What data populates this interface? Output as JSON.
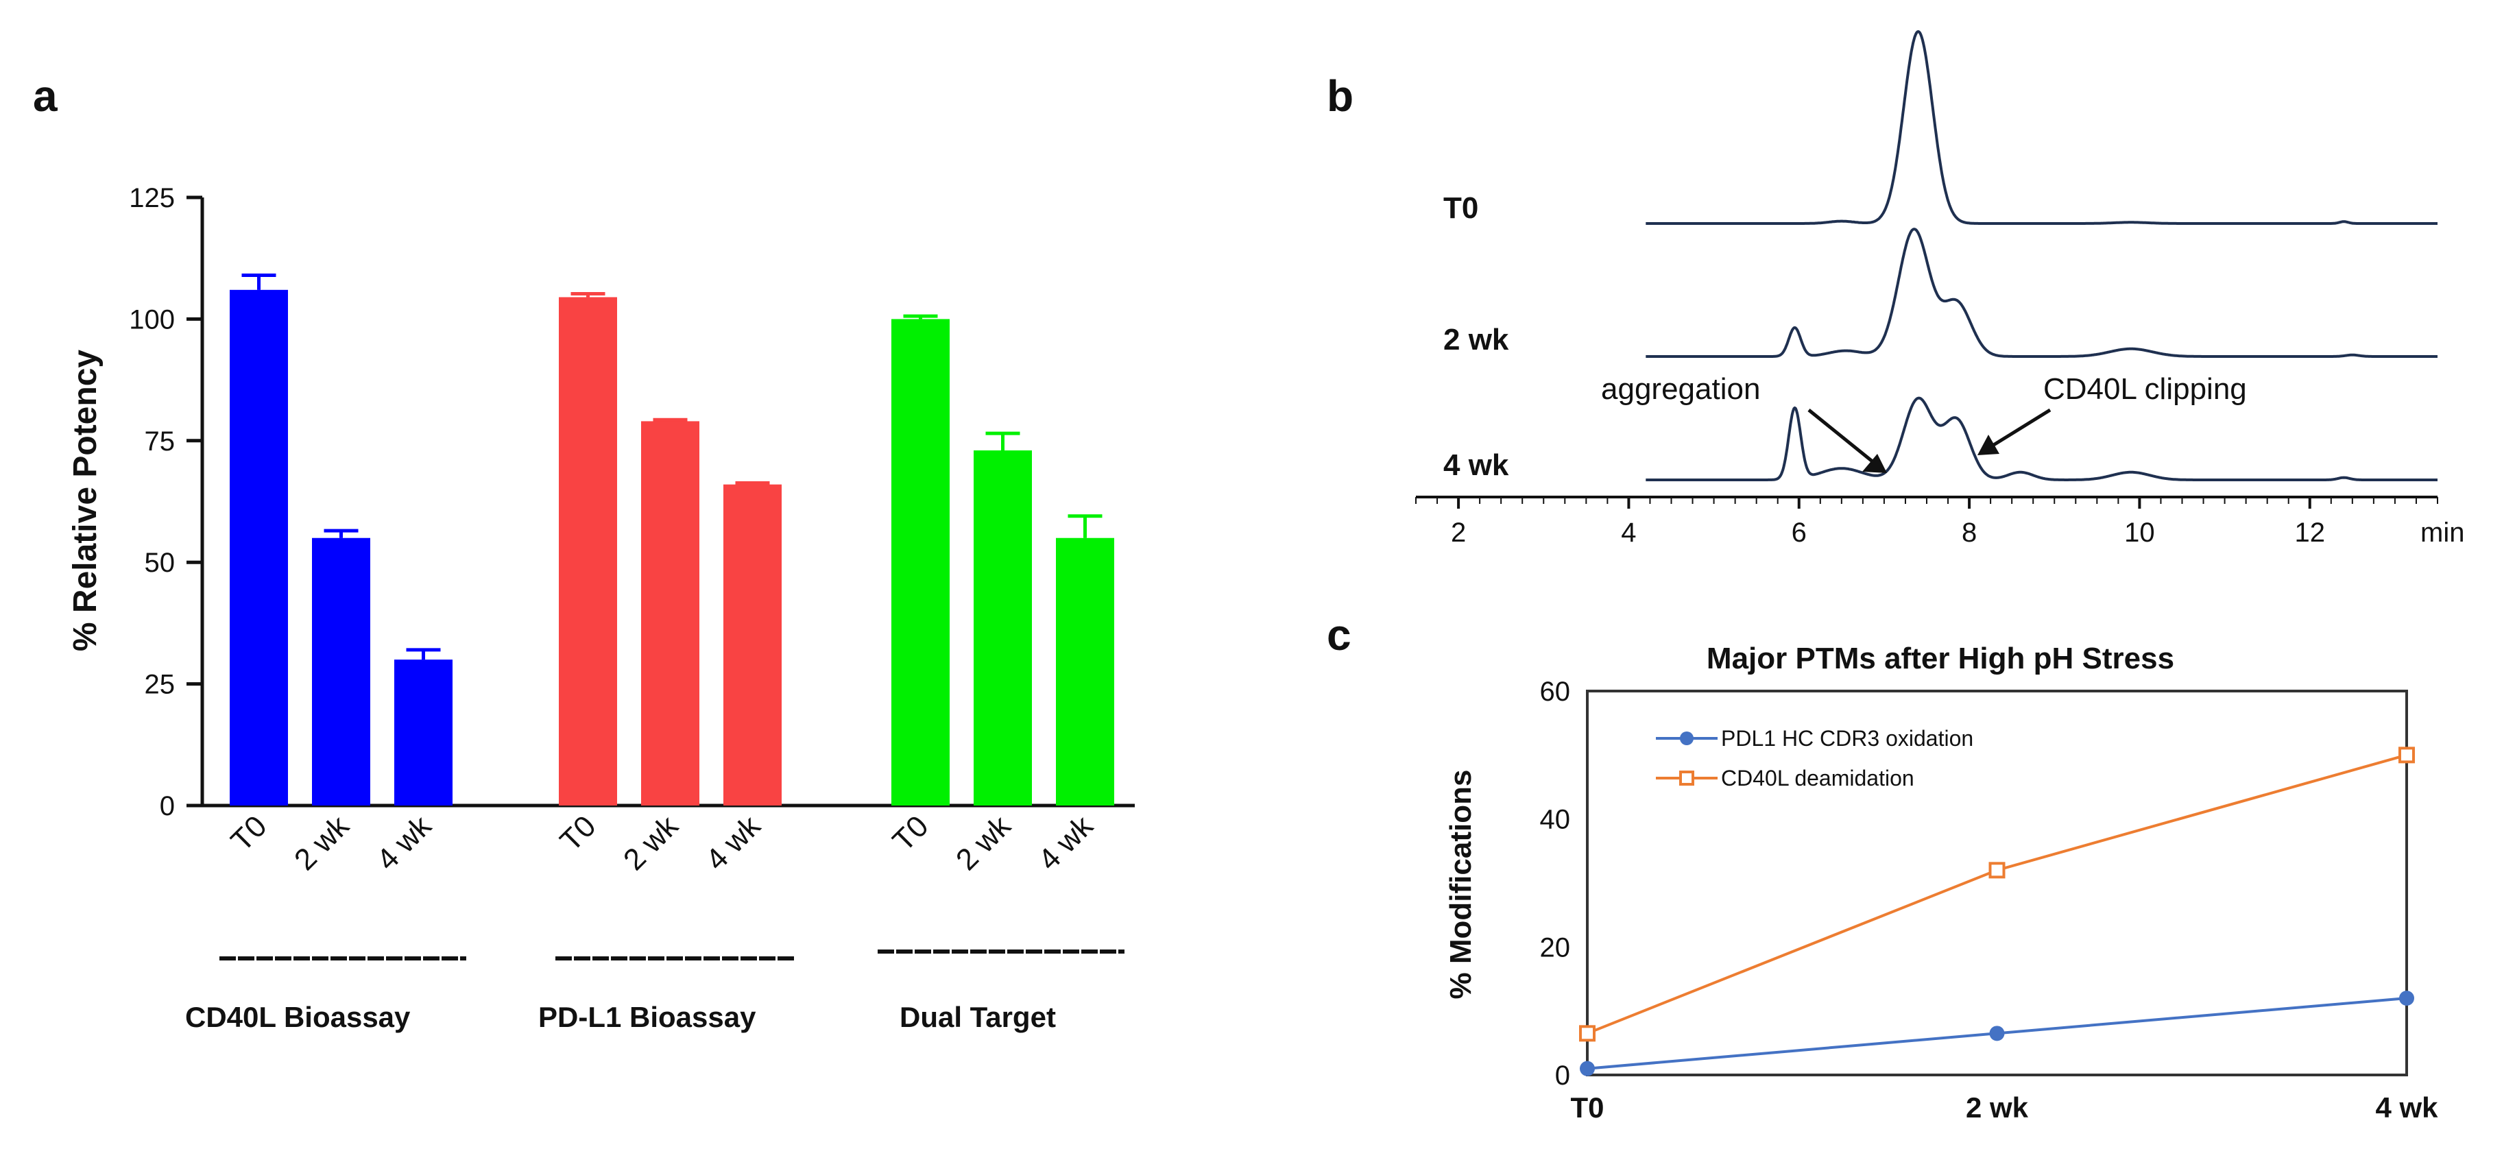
{
  "panels": {
    "a": "a",
    "b": "b",
    "c": "c"
  },
  "chart_data": [
    {
      "id": "a",
      "type": "bar",
      "title": "",
      "ylabel": "% Relative Potency",
      "xlabel": "",
      "ylim": [
        0,
        125
      ],
      "yticks": [
        0,
        25,
        50,
        75,
        100,
        125
      ],
      "groups": [
        {
          "name": "CD40L Bioassay",
          "color": "#0000ff",
          "categories": [
            "T0",
            "2 wk",
            "4 wk"
          ],
          "values": [
            106,
            55,
            30
          ],
          "errors": [
            3,
            1.5,
            2
          ]
        },
        {
          "name": "PD-L1 Bioassay",
          "color": "#f94343",
          "categories": [
            "T0",
            "2 wk",
            "4 wk"
          ],
          "values": [
            104.5,
            79,
            66
          ],
          "errors": [
            0.7,
            0.3,
            0.3
          ]
        },
        {
          "name": "Dual Target",
          "color": "#00f000",
          "categories": [
            "T0",
            "2 wk",
            "4 wk"
          ],
          "values": [
            100,
            73,
            55
          ],
          "errors": [
            0.6,
            3.5,
            4.5
          ]
        }
      ]
    },
    {
      "id": "b",
      "type": "line",
      "title": "",
      "xlabel": "min",
      "xlim": [
        1.5,
        13.5
      ],
      "xticks": [
        2,
        4,
        6,
        8,
        10,
        12
      ],
      "color": "#1f3050",
      "traces": [
        {
          "name": "T0",
          "peaks": [
            [
              7.4,
              1.0,
              0.17
            ],
            [
              6.5,
              0.012,
              0.15
            ],
            [
              9.9,
              0.006,
              0.2
            ],
            [
              12.4,
              0.01,
              0.05
            ]
          ]
        },
        {
          "name": "2 wk",
          "peaks": [
            [
              5.95,
              0.15,
              0.07
            ],
            [
              7.35,
              0.66,
              0.18
            ],
            [
              7.85,
              0.28,
              0.17
            ],
            [
              6.55,
              0.03,
              0.2
            ],
            [
              9.9,
              0.04,
              0.25
            ],
            [
              12.5,
              0.008,
              0.08
            ]
          ]
        },
        {
          "name": "4 wk",
          "peaks": [
            [
              5.95,
              0.37,
              0.07
            ],
            [
              7.4,
              0.42,
              0.17
            ],
            [
              7.85,
              0.31,
              0.16
            ],
            [
              6.5,
              0.06,
              0.25
            ],
            [
              8.6,
              0.04,
              0.15
            ],
            [
              9.9,
              0.04,
              0.22
            ],
            [
              12.4,
              0.012,
              0.07
            ]
          ]
        }
      ],
      "annotations": [
        {
          "text": "aggregation",
          "x": 5.95
        },
        {
          "text": "CD40L clipping",
          "x": 8.1
        }
      ]
    },
    {
      "id": "c",
      "type": "line",
      "title": "Major PTMs after High pH Stress",
      "ylabel": "% Modifications",
      "xlabel": "",
      "categories": [
        "T0",
        "2 wk",
        "4 wk"
      ],
      "ylim": [
        0,
        60
      ],
      "yticks": [
        0,
        20,
        40,
        60
      ],
      "series": [
        {
          "name": "PDL1 HC CDR3 oxidation",
          "color": "#4472c4",
          "marker": "circle",
          "values": [
            1,
            6.5,
            12
          ]
        },
        {
          "name": "CD40L deamidation",
          "color": "#ed7d31",
          "marker": "square",
          "values": [
            6.5,
            32,
            50
          ]
        }
      ]
    }
  ]
}
